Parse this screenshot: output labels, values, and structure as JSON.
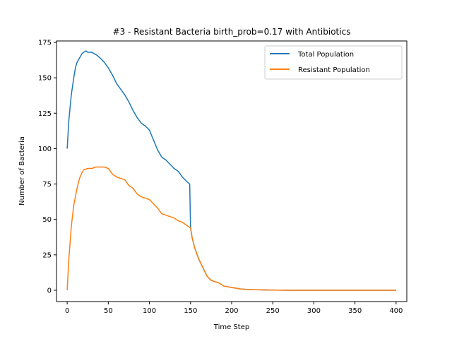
{
  "chart_data": {
    "type": "line",
    "title": "#3 - Resistant Bacteria birth_prob=0.17 with Antibiotics",
    "xlabel": "Time Step",
    "ylabel": "Number of Bacteria",
    "xlim": [
      -13,
      413
    ],
    "ylim": [
      -8,
      176
    ],
    "xticks": [
      0,
      50,
      100,
      150,
      200,
      250,
      300,
      350,
      400
    ],
    "yticks": [
      0,
      25,
      50,
      75,
      100,
      125,
      150,
      175
    ],
    "grid": false,
    "legend_position": "top-right",
    "series": [
      {
        "name": "Total Population",
        "color": "#1f77b4",
        "points": [
          [
            0,
            100
          ],
          [
            2,
            120
          ],
          [
            5,
            138
          ],
          [
            8,
            150
          ],
          [
            10,
            157
          ],
          [
            12,
            161
          ],
          [
            15,
            164
          ],
          [
            18,
            167
          ],
          [
            20,
            168
          ],
          [
            23,
            169
          ],
          [
            25,
            168
          ],
          [
            28,
            168
          ],
          [
            30,
            168
          ],
          [
            33,
            167
          ],
          [
            36,
            166
          ],
          [
            40,
            164
          ],
          [
            45,
            161
          ],
          [
            50,
            157
          ],
          [
            55,
            152
          ],
          [
            60,
            146
          ],
          [
            65,
            142
          ],
          [
            70,
            138
          ],
          [
            75,
            133
          ],
          [
            80,
            127
          ],
          [
            85,
            122
          ],
          [
            90,
            118
          ],
          [
            95,
            116
          ],
          [
            100,
            113
          ],
          [
            105,
            106
          ],
          [
            110,
            99
          ],
          [
            115,
            94
          ],
          [
            120,
            92
          ],
          [
            125,
            89
          ],
          [
            130,
            86
          ],
          [
            135,
            84
          ],
          [
            140,
            80
          ],
          [
            145,
            77
          ],
          [
            149,
            75
          ],
          [
            150,
            44
          ],
          [
            152,
            37
          ],
          [
            155,
            30
          ],
          [
            160,
            22
          ],
          [
            165,
            16
          ],
          [
            170,
            10
          ],
          [
            175,
            7
          ],
          [
            180,
            6
          ],
          [
            185,
            5
          ],
          [
            190,
            3
          ],
          [
            195,
            2.5
          ],
          [
            200,
            2
          ],
          [
            210,
            1
          ],
          [
            220,
            0.5
          ],
          [
            240,
            0.2
          ],
          [
            270,
            0
          ],
          [
            300,
            0
          ],
          [
            350,
            0
          ],
          [
            400,
            0
          ]
        ]
      },
      {
        "name": "Resistant Population",
        "color": "#ff7f0e",
        "points": [
          [
            0,
            0
          ],
          [
            2,
            22
          ],
          [
            5,
            45
          ],
          [
            8,
            60
          ],
          [
            10,
            66
          ],
          [
            12,
            72
          ],
          [
            15,
            79
          ],
          [
            18,
            83
          ],
          [
            20,
            85
          ],
          [
            25,
            86
          ],
          [
            30,
            86
          ],
          [
            35,
            87
          ],
          [
            40,
            87
          ],
          [
            45,
            87
          ],
          [
            50,
            86
          ],
          [
            55,
            82
          ],
          [
            60,
            80
          ],
          [
            65,
            79
          ],
          [
            70,
            78
          ],
          [
            75,
            74
          ],
          [
            80,
            72
          ],
          [
            85,
            68
          ],
          [
            90,
            66
          ],
          [
            95,
            65
          ],
          [
            100,
            64
          ],
          [
            105,
            61
          ],
          [
            110,
            58
          ],
          [
            115,
            54
          ],
          [
            120,
            53
          ],
          [
            125,
            52
          ],
          [
            130,
            51
          ],
          [
            135,
            49
          ],
          [
            140,
            48
          ],
          [
            145,
            46
          ],
          [
            150,
            44
          ],
          [
            152,
            37
          ],
          [
            155,
            30
          ],
          [
            160,
            22
          ],
          [
            165,
            16
          ],
          [
            170,
            10
          ],
          [
            175,
            7
          ],
          [
            180,
            6
          ],
          [
            185,
            5
          ],
          [
            190,
            3
          ],
          [
            195,
            2.5
          ],
          [
            200,
            2
          ],
          [
            210,
            1
          ],
          [
            220,
            0.5
          ],
          [
            240,
            0.2
          ],
          [
            270,
            0
          ],
          [
            300,
            0
          ],
          [
            350,
            0
          ],
          [
            400,
            0
          ]
        ]
      }
    ]
  }
}
